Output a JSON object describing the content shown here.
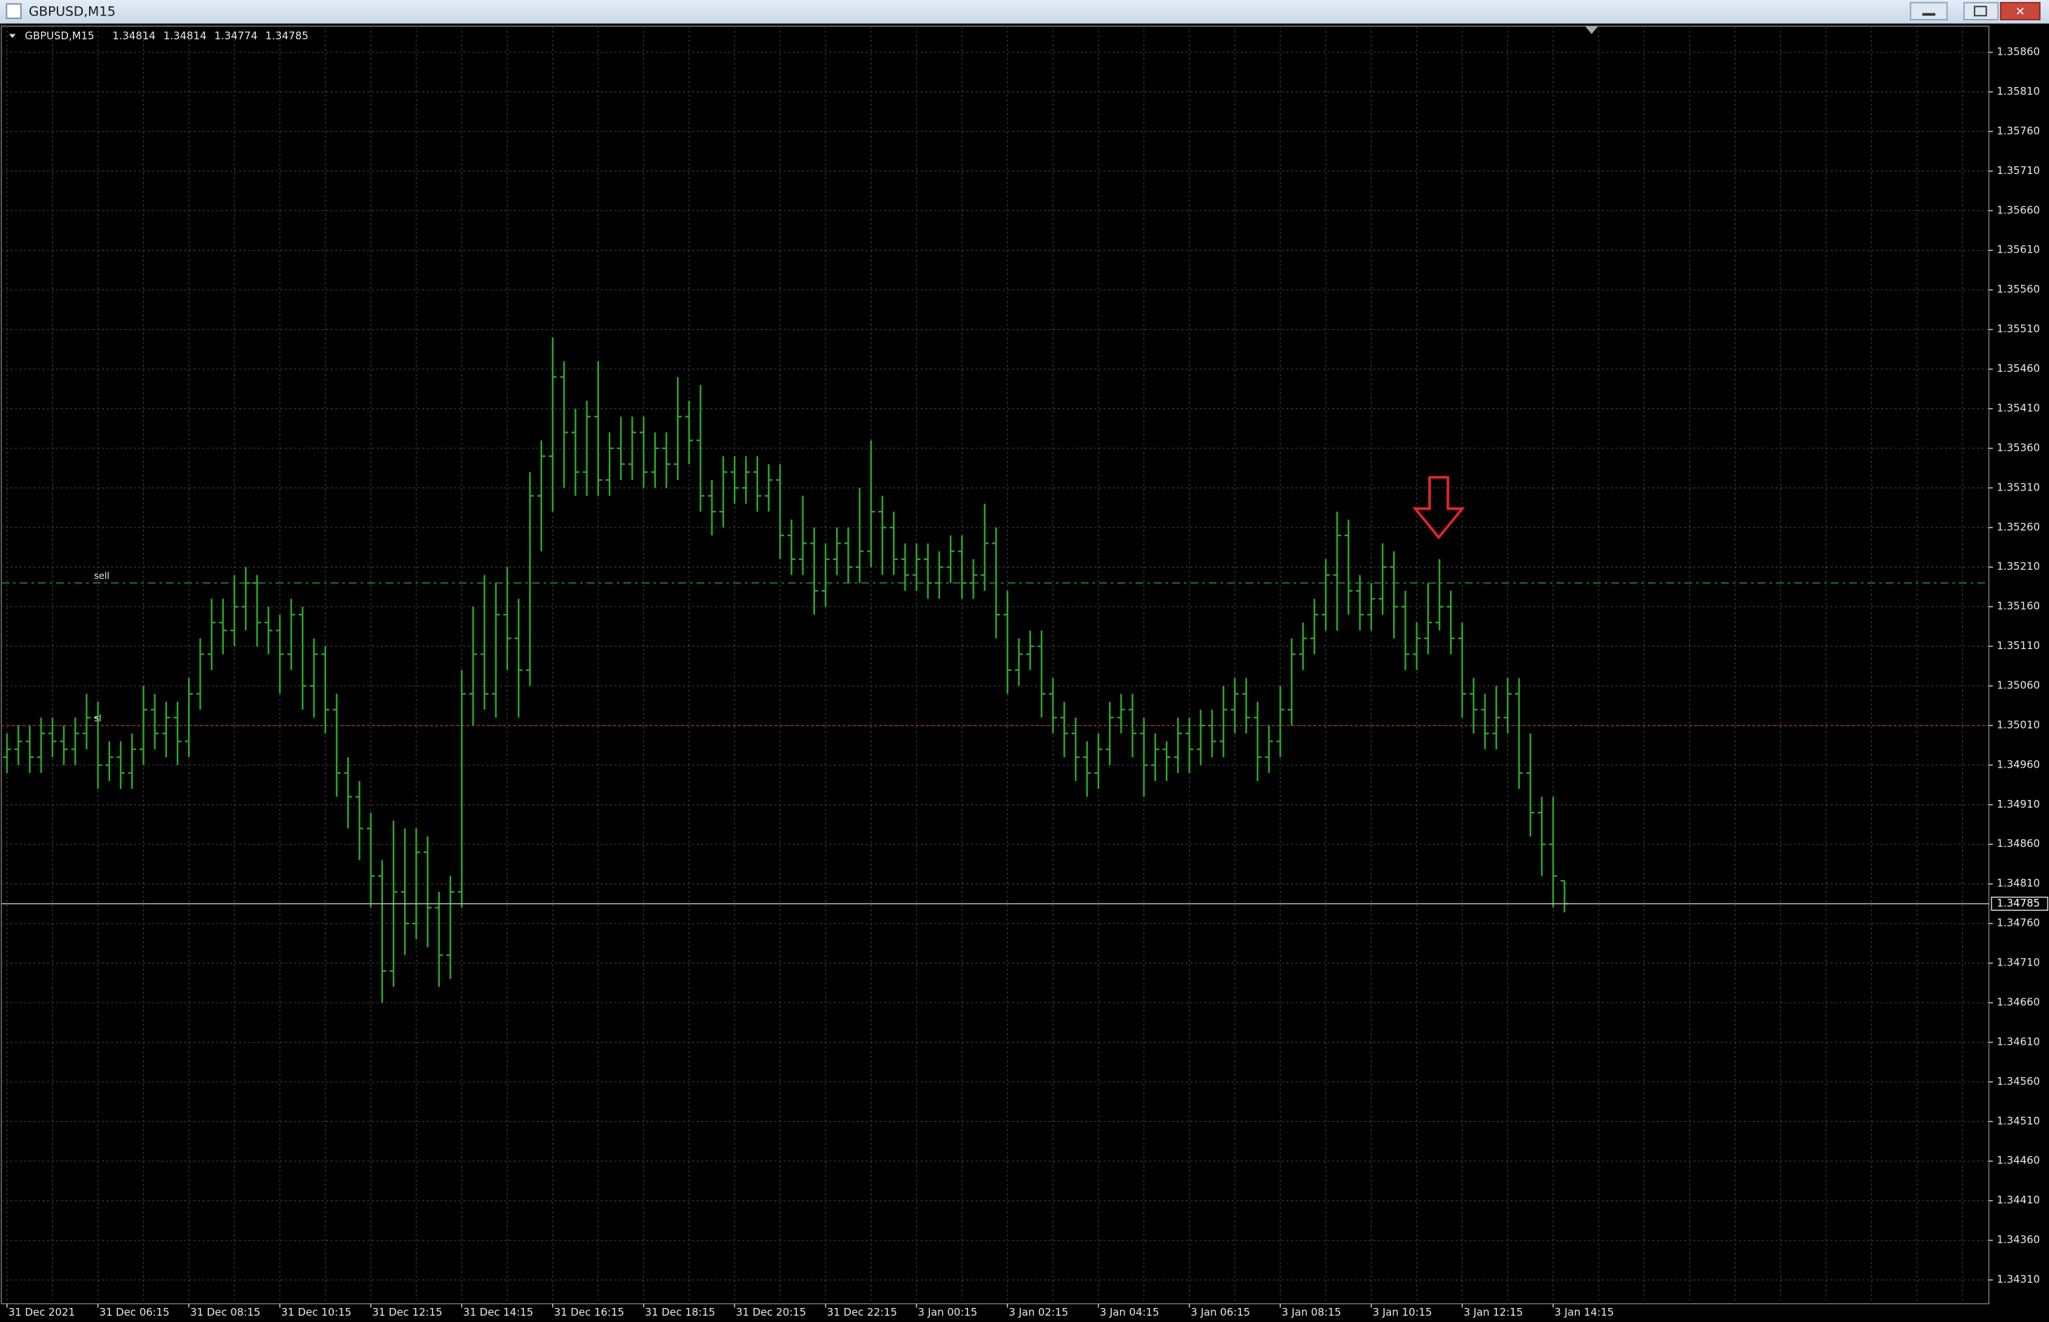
{
  "window_title": "GBPUSD,M15",
  "chart_data": {
    "type": "ohlc",
    "symbol": "GBPUSD,M15",
    "color": "#2fa52f",
    "grid": true,
    "categories": [
      "31 Dec 2021",
      null,
      null,
      null,
      null,
      null,
      null,
      null,
      "31 Dec 06:15",
      null,
      null,
      null,
      null,
      null,
      null,
      null,
      "31 Dec 08:15",
      null,
      null,
      null,
      null,
      null,
      null,
      null,
      "31 Dec 10:15",
      null,
      null,
      null,
      null,
      null,
      null,
      null,
      "31 Dec 12:15",
      null,
      null,
      null,
      null,
      null,
      null,
      null,
      "31 Dec 14:15",
      null,
      null,
      null,
      null,
      null,
      null,
      null,
      "31 Dec 16:15",
      null,
      null,
      null,
      null,
      null,
      null,
      null,
      "31 Dec 18:15",
      null,
      null,
      null,
      null,
      null,
      null,
      null,
      "31 Dec 20:15",
      null,
      null,
      null,
      null,
      null,
      null,
      null,
      "31 Dec 22:15",
      null,
      null,
      null,
      null,
      null,
      null,
      null,
      "3 Jan 00:15",
      null,
      null,
      null,
      null,
      null,
      null,
      null,
      "3 Jan 02:15",
      null,
      null,
      null,
      null,
      null,
      null,
      null,
      "3 Jan 04:15",
      null,
      null,
      null,
      null,
      null,
      null,
      null,
      "3 Jan 06:15",
      null,
      null,
      null,
      null,
      null,
      null,
      null,
      "3 Jan 08:15",
      null,
      null,
      null,
      null,
      null,
      null,
      null,
      "3 Jan 10:15",
      null,
      null,
      null,
      null,
      null,
      null,
      null,
      "3 Jan 12:15",
      null,
      null,
      null,
      null,
      null,
      null,
      null,
      "3 Jan 14:15",
      null
    ],
    "open": [
      1.3497,
      1.3498,
      1.3499,
      1.3497,
      1.35,
      1.3499,
      1.3498,
      1.35,
      1.3502,
      1.3496,
      1.3497,
      1.3495,
      1.3498,
      1.3503,
      1.35,
      1.3502,
      1.3499,
      1.3505,
      1.351,
      1.3514,
      1.3513,
      1.3516,
      1.3519,
      1.3514,
      1.3513,
      1.351,
      1.3515,
      1.3506,
      1.351,
      1.3503,
      1.3495,
      1.3492,
      1.3488,
      1.3482,
      1.347,
      1.348,
      1.3476,
      1.3485,
      1.3478,
      1.3472,
      1.348,
      1.3505,
      1.351,
      1.3505,
      1.3515,
      1.3512,
      1.3508,
      1.353,
      1.3535,
      1.3545,
      1.3538,
      1.3533,
      1.354,
      1.3532,
      1.3536,
      1.3534,
      1.3538,
      1.3533,
      1.3536,
      1.3534,
      1.354,
      1.3537,
      1.353,
      1.3528,
      1.3533,
      1.3531,
      1.3533,
      1.353,
      1.3532,
      1.3525,
      1.3522,
      1.3524,
      1.3518,
      1.3522,
      1.3524,
      1.3521,
      1.3523,
      1.3528,
      1.3526,
      1.3522,
      1.352,
      1.3522,
      1.3519,
      1.3521,
      1.3523,
      1.3519,
      1.352,
      1.3524,
      1.3515,
      1.3508,
      1.351,
      1.3511,
      1.3505,
      1.3502,
      1.35,
      1.3497,
      1.3495,
      1.3498,
      1.3502,
      1.3503,
      1.35,
      1.3496,
      1.3498,
      1.3497,
      1.35,
      1.3498,
      1.3501,
      1.3499,
      1.3503,
      1.3505,
      1.3502,
      1.3497,
      1.3499,
      1.3503,
      1.351,
      1.3512,
      1.3515,
      1.352,
      1.3525,
      1.3518,
      1.3515,
      1.3517,
      1.3521,
      1.3516,
      1.351,
      1.3512,
      1.3514,
      1.3516,
      1.3512,
      1.3505,
      1.3503,
      1.35,
      1.3502,
      1.3505,
      1.3495,
      1.349,
      1.3486,
      1.34814
    ],
    "high": [
      1.35,
      1.3501,
      1.3501,
      1.3502,
      1.3502,
      1.3501,
      1.3502,
      1.3505,
      1.3504,
      1.3499,
      1.3499,
      1.35,
      1.3506,
      1.3505,
      1.3504,
      1.3504,
      1.3507,
      1.3512,
      1.3517,
      1.3517,
      1.352,
      1.3521,
      1.352,
      1.3516,
      1.3515,
      1.3517,
      1.3516,
      1.3512,
      1.3511,
      1.3505,
      1.3497,
      1.3494,
      1.349,
      1.3484,
      1.3489,
      1.3488,
      1.3488,
      1.3487,
      1.348,
      1.3482,
      1.3508,
      1.3516,
      1.352,
      1.3519,
      1.3521,
      1.3517,
      1.3533,
      1.3537,
      1.355,
      1.3547,
      1.3541,
      1.3542,
      1.3547,
      1.3538,
      1.354,
      1.354,
      1.354,
      1.3538,
      1.3538,
      1.3545,
      1.3542,
      1.3544,
      1.3532,
      1.3535,
      1.3535,
      1.3535,
      1.3535,
      1.3534,
      1.3534,
      1.3527,
      1.353,
      1.3526,
      1.3524,
      1.3526,
      1.3526,
      1.3531,
      1.3537,
      1.353,
      1.3528,
      1.3524,
      1.3524,
      1.3524,
      1.3523,
      1.3525,
      1.3525,
      1.3522,
      1.3529,
      1.3526,
      1.3518,
      1.3512,
      1.3513,
      1.3513,
      1.3507,
      1.3504,
      1.3502,
      1.3499,
      1.35,
      1.3504,
      1.3505,
      1.3505,
      1.3502,
      1.35,
      1.3499,
      1.3502,
      1.3502,
      1.3503,
      1.3503,
      1.3506,
      1.3507,
      1.3507,
      1.3504,
      1.3501,
      1.3506,
      1.3512,
      1.3514,
      1.3517,
      1.3522,
      1.3528,
      1.3527,
      1.352,
      1.3519,
      1.3524,
      1.3523,
      1.3518,
      1.3514,
      1.3519,
      1.3522,
      1.3518,
      1.3514,
      1.3507,
      1.3505,
      1.3506,
      1.3507,
      1.3507,
      1.35,
      1.3492,
      1.3492,
      1.34814
    ],
    "low": [
      1.3495,
      1.3496,
      1.3495,
      1.3495,
      1.3497,
      1.3496,
      1.3496,
      1.3498,
      1.3493,
      1.3494,
      1.3493,
      1.3493,
      1.3496,
      1.3498,
      1.3497,
      1.3496,
      1.3497,
      1.3503,
      1.3508,
      1.351,
      1.3511,
      1.3513,
      1.3511,
      1.351,
      1.3505,
      1.3508,
      1.3503,
      1.3502,
      1.35,
      1.3492,
      1.3488,
      1.3484,
      1.3478,
      1.3466,
      1.3468,
      1.3472,
      1.3474,
      1.3473,
      1.3468,
      1.3469,
      1.3478,
      1.3501,
      1.3503,
      1.3502,
      1.3508,
      1.3502,
      1.3506,
      1.3523,
      1.3528,
      1.3531,
      1.353,
      1.353,
      1.353,
      1.353,
      1.3532,
      1.3532,
      1.3531,
      1.3531,
      1.3531,
      1.3532,
      1.3534,
      1.3528,
      1.3525,
      1.3526,
      1.3529,
      1.3529,
      1.3528,
      1.3528,
      1.3522,
      1.352,
      1.352,
      1.3515,
      1.3516,
      1.352,
      1.3519,
      1.3519,
      1.3521,
      1.352,
      1.352,
      1.3518,
      1.3518,
      1.3517,
      1.3517,
      1.3519,
      1.3517,
      1.3517,
      1.3518,
      1.3512,
      1.3505,
      1.3506,
      1.3508,
      1.3502,
      1.35,
      1.3497,
      1.3494,
      1.3492,
      1.3493,
      1.3496,
      1.35,
      1.3497,
      1.3492,
      1.3494,
      1.3494,
      1.3495,
      1.3495,
      1.3496,
      1.3497,
      1.3497,
      1.35,
      1.35,
      1.3494,
      1.3495,
      1.3497,
      1.3501,
      1.3508,
      1.351,
      1.3513,
      1.3513,
      1.3515,
      1.3513,
      1.3513,
      1.3515,
      1.3512,
      1.3508,
      1.3508,
      1.351,
      1.3513,
      1.351,
      1.3502,
      1.35,
      1.3498,
      1.3498,
      1.35,
      1.3493,
      1.3487,
      1.3482,
      1.3478,
      1.34774
    ],
    "close": [
      1.3498,
      1.3499,
      1.3497,
      1.35,
      1.3499,
      1.3498,
      1.35,
      1.3502,
      1.3496,
      1.3497,
      1.3495,
      1.3498,
      1.3503,
      1.35,
      1.3502,
      1.3499,
      1.3505,
      1.351,
      1.3514,
      1.3513,
      1.3516,
      1.3519,
      1.3514,
      1.3513,
      1.351,
      1.3515,
      1.3506,
      1.351,
      1.3503,
      1.3495,
      1.3492,
      1.3488,
      1.3482,
      1.347,
      1.348,
      1.3476,
      1.3485,
      1.3478,
      1.3472,
      1.348,
      1.3505,
      1.351,
      1.3505,
      1.3515,
      1.3512,
      1.3508,
      1.353,
      1.3535,
      1.3545,
      1.3538,
      1.3533,
      1.354,
      1.3532,
      1.3536,
      1.3534,
      1.3538,
      1.3533,
      1.3536,
      1.3534,
      1.354,
      1.3537,
      1.353,
      1.3528,
      1.3533,
      1.3531,
      1.3533,
      1.353,
      1.3532,
      1.3525,
      1.3522,
      1.3524,
      1.3518,
      1.3522,
      1.3524,
      1.3521,
      1.3523,
      1.3528,
      1.3526,
      1.3522,
      1.352,
      1.3522,
      1.3519,
      1.3521,
      1.3523,
      1.3519,
      1.352,
      1.3524,
      1.3515,
      1.3508,
      1.351,
      1.3511,
      1.3505,
      1.3502,
      1.35,
      1.3497,
      1.3495,
      1.3498,
      1.3502,
      1.3503,
      1.35,
      1.3496,
      1.3498,
      1.3497,
      1.35,
      1.3498,
      1.3501,
      1.3499,
      1.3503,
      1.3505,
      1.3502,
      1.3497,
      1.3499,
      1.3503,
      1.351,
      1.3512,
      1.3515,
      1.352,
      1.3525,
      1.3518,
      1.3515,
      1.3517,
      1.3521,
      1.3516,
      1.351,
      1.3512,
      1.3514,
      1.3516,
      1.3512,
      1.3505,
      1.3503,
      1.35,
      1.3502,
      1.3505,
      1.3495,
      1.349,
      1.3486,
      1.3482,
      1.34785
    ],
    "ylim": [
      1.3428,
      1.35893
    ],
    "yticks": [
      {
        "value": 1.3431,
        "label": "1.34310"
      },
      {
        "value": 1.3436,
        "label": "1.34360"
      },
      {
        "value": 1.3441,
        "label": "1.34410"
      },
      {
        "value": 1.3446,
        "label": "1.34460"
      },
      {
        "value": 1.3451,
        "label": "1.34510"
      },
      {
        "value": 1.3456,
        "label": "1.34560"
      },
      {
        "value": 1.3461,
        "label": "1.34610"
      },
      {
        "value": 1.3466,
        "label": "1.34660"
      },
      {
        "value": 1.3471,
        "label": "1.34710"
      },
      {
        "value": 1.3476,
        "label": "1.34760"
      },
      {
        "value": 1.3481,
        "label": "1.34810"
      },
      {
        "value": 1.3486,
        "label": "1.34860"
      },
      {
        "value": 1.3491,
        "label": "1.34910"
      },
      {
        "value": 1.3496,
        "label": "1.34960"
      },
      {
        "value": 1.3501,
        "label": "1.35010"
      },
      {
        "value": 1.3506,
        "label": "1.35060"
      },
      {
        "value": 1.3511,
        "label": "1.35110"
      },
      {
        "value": 1.3516,
        "label": "1.35160"
      },
      {
        "value": 1.3521,
        "label": "1.35210"
      },
      {
        "value": 1.3526,
        "label": "1.35260"
      },
      {
        "value": 1.3531,
        "label": "1.35310"
      },
      {
        "value": 1.3536,
        "label": "1.35360"
      },
      {
        "value": 1.3541,
        "label": "1.35410"
      },
      {
        "value": 1.3546,
        "label": "1.35460"
      },
      {
        "value": 1.3551,
        "label": "1.35510"
      },
      {
        "value": 1.3556,
        "label": "1.35560"
      },
      {
        "value": 1.3561,
        "label": "1.35610"
      },
      {
        "value": 1.3566,
        "label": "1.35660"
      },
      {
        "value": 1.3571,
        "label": "1.35710"
      },
      {
        "value": 1.3576,
        "label": "1.35760"
      },
      {
        "value": 1.3581,
        "label": "1.35810"
      },
      {
        "value": 1.3586,
        "label": "1.35860"
      }
    ],
    "bid": 1.34785,
    "levels": [
      {
        "name": "sell",
        "value": 1.3519,
        "color": "#2e8b2e",
        "dash": "6 3 2 3"
      },
      {
        "name": "sl",
        "value": 1.3501,
        "color": "#b03030",
        "dash": "2 2"
      }
    ]
  }
}
